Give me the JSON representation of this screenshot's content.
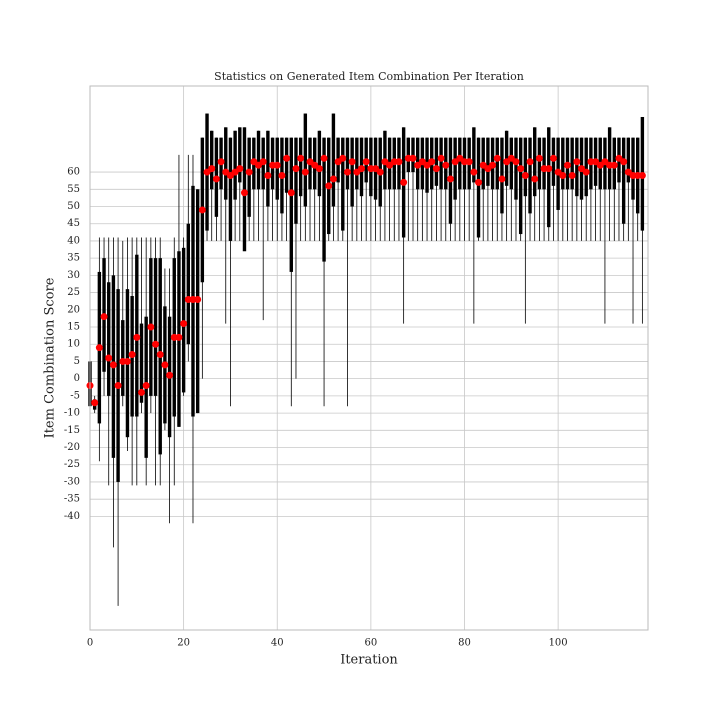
{
  "chart_data": {
    "type": "box",
    "title": "Statistics on Generated Item Combination Per Iteration",
    "x_label": "Iteration",
    "y_label": "Item Combination Score",
    "xlim": [
      0,
      119.2
    ],
    "ylim": [
      -73,
      85
    ],
    "xticks": [
      0,
      20,
      40,
      60,
      80,
      100
    ],
    "yticks": [
      -40,
      -35,
      -30,
      -25,
      -20,
      -15,
      -10,
      -5,
      0,
      5,
      10,
      15,
      20,
      25,
      30,
      35,
      40,
      45,
      50,
      55,
      60
    ],
    "grid": true,
    "box_color": "#000000",
    "mean_color": "#ff0000",
    "x": [
      0,
      1,
      2,
      3,
      4,
      5,
      6,
      7,
      8,
      9,
      10,
      11,
      12,
      13,
      14,
      15,
      16,
      17,
      18,
      19,
      20,
      21,
      22,
      23,
      24,
      25,
      26,
      27,
      28,
      29,
      30,
      31,
      32,
      33,
      34,
      35,
      36,
      37,
      38,
      39,
      40,
      41,
      42,
      43,
      44,
      45,
      46,
      47,
      48,
      49,
      50,
      51,
      52,
      53,
      54,
      55,
      56,
      57,
      58,
      59,
      60,
      61,
      62,
      63,
      64,
      65,
      66,
      67,
      68,
      69,
      70,
      71,
      72,
      73,
      74,
      75,
      76,
      77,
      78,
      79,
      80,
      81,
      82,
      83,
      84,
      85,
      86,
      87,
      88,
      89,
      90,
      91,
      92,
      93,
      94,
      95,
      96,
      97,
      98,
      99,
      100,
      101,
      102,
      103,
      104,
      105,
      106,
      107,
      108,
      109,
      110,
      111,
      112,
      113,
      114,
      115,
      116,
      117,
      118
    ],
    "min": [
      -19,
      -10,
      -24,
      -5,
      -31,
      -49,
      -66,
      -8,
      -21,
      -31,
      -31,
      -10,
      -31,
      -10,
      -31,
      -31,
      -15,
      -42,
      -31,
      -14,
      -5,
      5,
      -42,
      -10,
      0,
      40,
      40,
      40,
      40,
      16,
      -8,
      40,
      40,
      40,
      40,
      40,
      40,
      17,
      40,
      40,
      40,
      40,
      40,
      -8,
      0,
      40,
      40,
      40,
      40,
      40,
      -8,
      40,
      40,
      40,
      40,
      -8,
      40,
      40,
      40,
      40,
      40,
      40,
      40,
      40,
      40,
      40,
      40,
      16,
      40,
      40,
      40,
      40,
      40,
      40,
      40,
      40,
      40,
      40,
      40,
      40,
      40,
      40,
      16,
      40,
      40,
      40,
      40,
      40,
      40,
      40,
      40,
      40,
      40,
      16,
      40,
      40,
      40,
      40,
      40,
      40,
      40,
      40,
      40,
      40,
      40,
      40,
      40,
      40,
      40,
      40,
      16,
      40,
      40,
      40,
      40,
      40,
      16,
      40,
      16
    ],
    "q1": [
      -8,
      -9,
      -13,
      2,
      -5,
      -23,
      -30,
      -5,
      -17,
      -11,
      -11,
      -7,
      -23,
      -5,
      -5,
      -22,
      -13,
      -17,
      -11,
      -14,
      -4,
      10,
      -11,
      -10,
      28,
      43,
      55,
      47,
      55,
      52,
      40,
      52,
      57,
      37,
      47,
      55,
      55,
      55,
      50,
      55,
      52,
      48,
      54,
      31,
      45,
      53,
      50,
      55,
      55,
      53,
      34,
      42,
      50,
      57,
      43,
      55,
      50,
      55,
      53,
      57,
      53,
      52,
      50,
      55,
      55,
      55,
      55,
      41,
      60,
      60,
      55,
      55,
      54,
      55,
      56,
      55,
      55,
      45,
      52,
      55,
      55,
      55,
      57,
      41,
      55,
      56,
      55,
      55,
      48,
      56,
      55,
      52,
      42,
      53,
      48,
      53,
      55,
      55,
      44,
      56,
      49,
      55,
      55,
      55,
      53,
      52,
      53,
      55,
      56,
      55,
      55,
      55,
      55,
      57,
      45,
      57,
      52,
      48,
      43
    ],
    "q3": [
      5,
      -6,
      31,
      35,
      28,
      30,
      26,
      17,
      26,
      24,
      36,
      16,
      18,
      35,
      35,
      35,
      21,
      18,
      35,
      37,
      38,
      45,
      56,
      55,
      70,
      77,
      72,
      70,
      70,
      73,
      70,
      72,
      73,
      73,
      70,
      70,
      72,
      70,
      72,
      70,
      70,
      70,
      70,
      70,
      70,
      70,
      77,
      70,
      70,
      72,
      70,
      70,
      77,
      70,
      70,
      70,
      70,
      70,
      70,
      70,
      70,
      70,
      70,
      72,
      70,
      70,
      70,
      73,
      70,
      70,
      70,
      70,
      70,
      70,
      70,
      70,
      70,
      70,
      70,
      70,
      70,
      70,
      73,
      70,
      70,
      70,
      70,
      70,
      70,
      72,
      70,
      70,
      70,
      70,
      70,
      73,
      70,
      70,
      73,
      70,
      70,
      70,
      70,
      70,
      70,
      70,
      70,
      70,
      70,
      70,
      70,
      73,
      70,
      70,
      70,
      70,
      70,
      70,
      76
    ],
    "max": [
      15,
      -5,
      41,
      41,
      41,
      41,
      41,
      40,
      41,
      41,
      41,
      41,
      41,
      41,
      41,
      41,
      32,
      32,
      41,
      65,
      41,
      65,
      65,
      55,
      70,
      77,
      72,
      70,
      70,
      73,
      70,
      72,
      73,
      73,
      70,
      70,
      72,
      70,
      72,
      70,
      70,
      70,
      70,
      70,
      70,
      70,
      77,
      70,
      70,
      72,
      70,
      70,
      77,
      70,
      70,
      70,
      70,
      70,
      70,
      70,
      70,
      70,
      70,
      72,
      70,
      70,
      70,
      73,
      70,
      70,
      70,
      70,
      70,
      70,
      70,
      70,
      70,
      70,
      70,
      70,
      70,
      70,
      73,
      70,
      70,
      70,
      70,
      70,
      70,
      72,
      70,
      70,
      70,
      70,
      70,
      73,
      70,
      70,
      73,
      70,
      70,
      70,
      70,
      70,
      70,
      70,
      70,
      70,
      70,
      70,
      70,
      73,
      70,
      70,
      70,
      70,
      70,
      70,
      76
    ],
    "mean": [
      -2,
      -7,
      9,
      18,
      6,
      4,
      -2,
      5,
      5,
      7,
      12,
      -4,
      -2,
      15,
      10,
      7,
      4,
      1,
      12,
      12,
      16,
      23,
      23,
      23,
      49,
      60,
      61,
      58,
      63,
      60,
      59,
      60,
      61,
      54,
      60,
      63,
      62,
      63,
      59,
      62,
      62,
      59,
      64,
      54,
      61,
      64,
      60,
      63,
      62,
      61,
      64,
      56,
      58,
      63,
      64,
      60,
      63,
      60,
      61,
      63,
      61,
      61,
      60,
      63,
      62,
      63,
      63,
      57,
      64,
      64,
      62,
      63,
      62,
      63,
      61,
      64,
      62,
      58,
      63,
      64,
      63,
      63,
      60,
      57,
      62,
      61,
      62,
      64,
      58,
      63,
      64,
      63,
      61,
      59,
      63,
      58,
      64,
      61,
      61,
      64,
      60,
      59,
      62,
      59,
      63,
      61,
      60,
      63,
      63,
      62,
      63,
      62,
      62,
      64,
      63,
      60,
      59,
      59,
      59
    ]
  }
}
